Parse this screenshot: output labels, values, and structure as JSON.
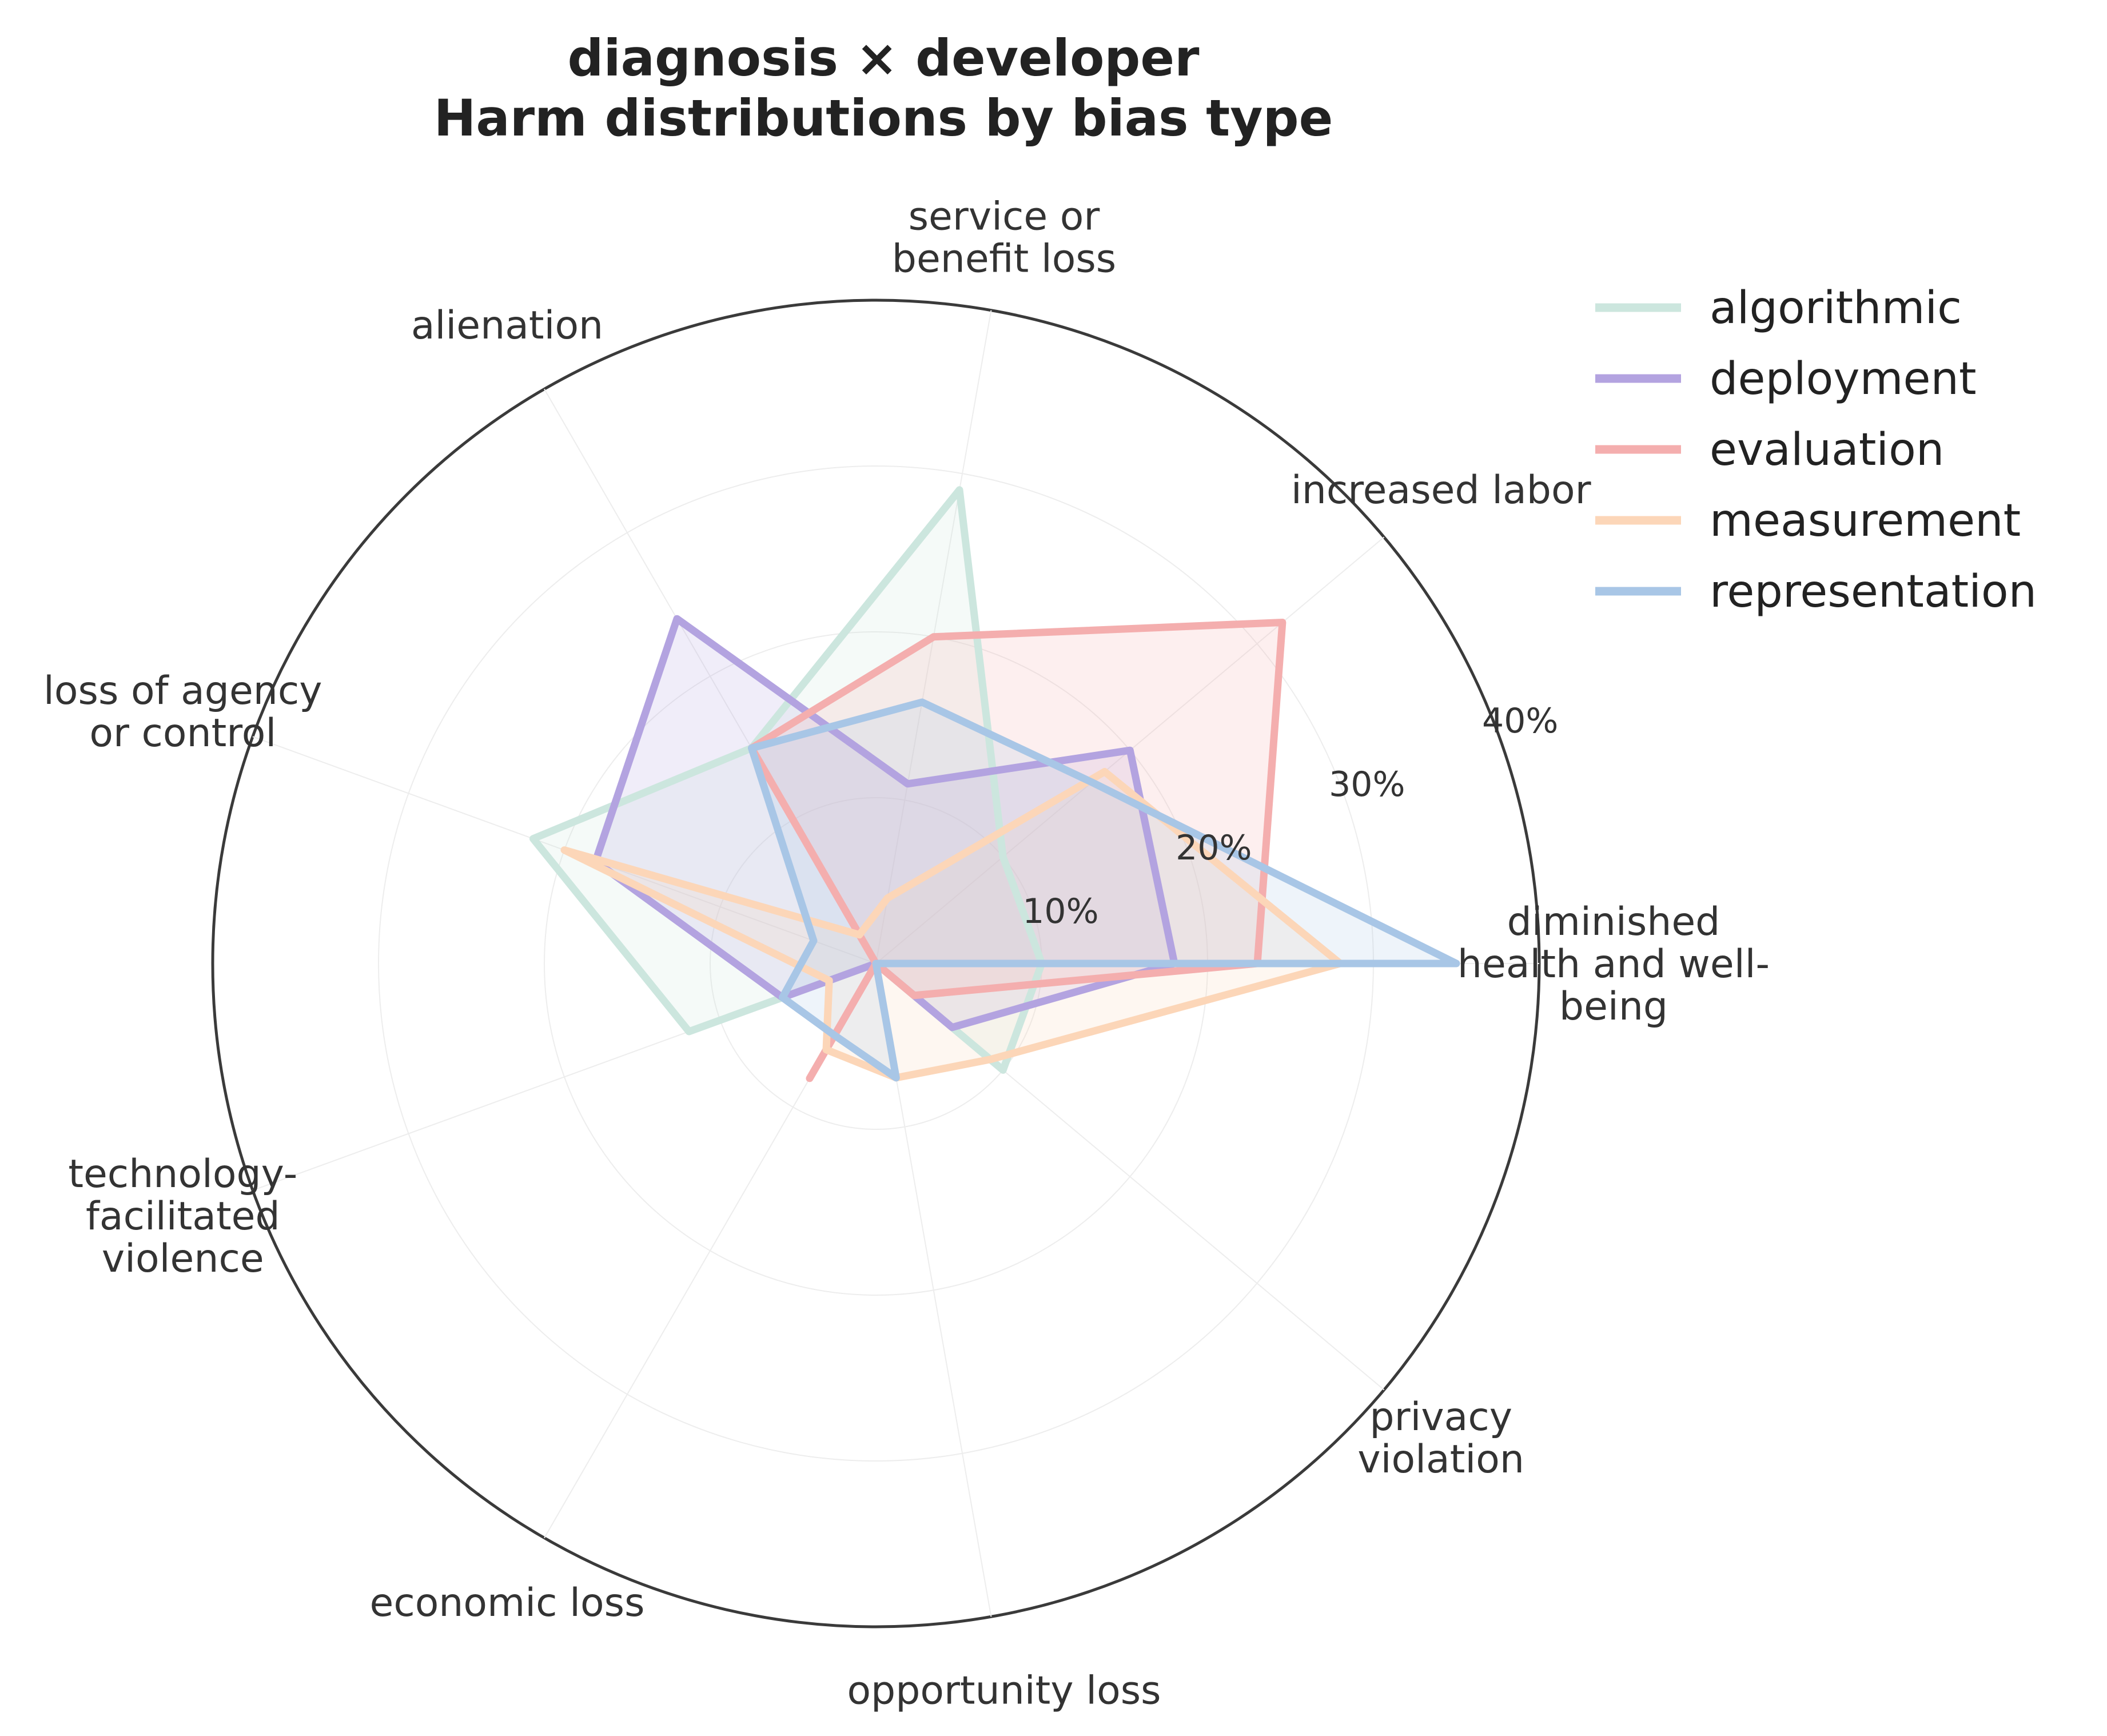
{
  "chart_data": {
    "type": "radar",
    "title_lines": [
      "diagnosis × developer",
      "Harm distributions by bias type"
    ],
    "axes": [
      [
        "diminished",
        "health and well-",
        "being"
      ],
      [
        "increased labor"
      ],
      [
        "service or",
        "benefit loss"
      ],
      [
        "alienation"
      ],
      [
        "loss of agency",
        "or control"
      ],
      [
        "technology-",
        "facilitated",
        "violence"
      ],
      [
        "economic loss"
      ],
      [
        "opportunity loss"
      ],
      [
        "privacy",
        "violation"
      ]
    ],
    "rmax": 40,
    "ticks": [
      10,
      20,
      30,
      40
    ],
    "tick_labels": [
      "10%",
      "20%",
      "30%",
      "40%"
    ],
    "legend_position": "top-right",
    "series": [
      {
        "name": "algorithmic",
        "color": "#cce6de",
        "values": [
          10,
          10,
          29,
          15,
          22,
          12,
          0,
          0,
          10
        ]
      },
      {
        "name": "deployment",
        "color": "#b3a3e0",
        "values": [
          18,
          20,
          11,
          24,
          18,
          6,
          0,
          0,
          6
        ]
      },
      {
        "name": "evaluation",
        "color": "#f4aeae",
        "values": [
          23,
          32,
          20,
          15,
          0,
          0,
          8,
          0,
          3
        ]
      },
      {
        "name": "measurement",
        "color": "#fcd6b8",
        "values": [
          28,
          18,
          4,
          2,
          20,
          3,
          6,
          7,
          9
        ]
      },
      {
        "name": "representation",
        "color": "#a8c6e6",
        "values": [
          35,
          17,
          16,
          15,
          4,
          6,
          5,
          7,
          0
        ]
      }
    ]
  }
}
